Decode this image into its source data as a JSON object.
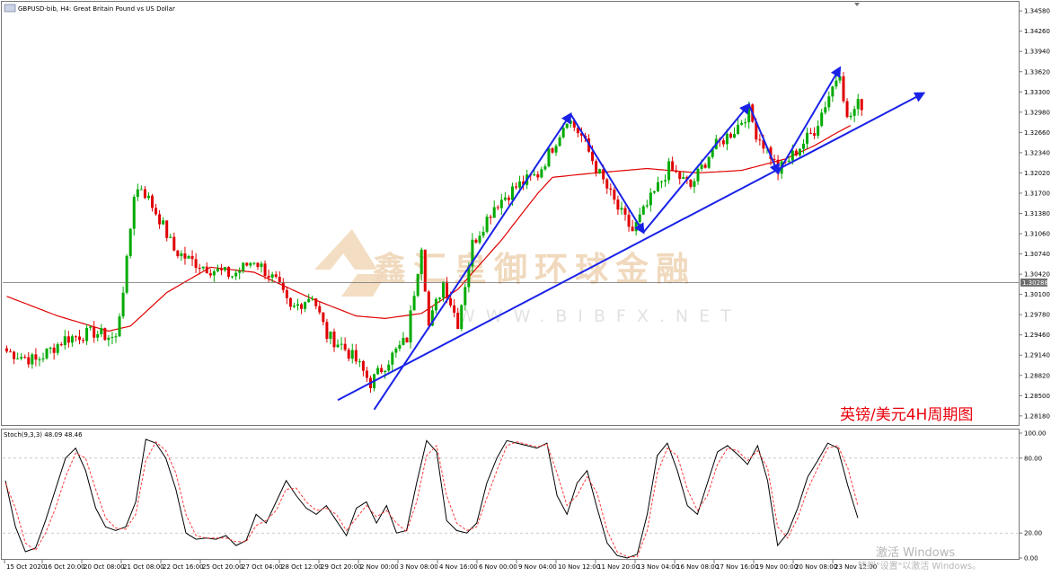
{
  "window": {
    "title": "GBPUSD-bib, H4:  Great Britain Pound vs US Dollar"
  },
  "annotation": {
    "caption": "英镑/美元4H周期图"
  },
  "watermark": {
    "text": "鑫汇皇御环球金融",
    "url": "WWW.BIBFX.NET"
  },
  "os_overlay": {
    "line1": "激活 Windows",
    "line2": "转到\"设置\"以激活 Windows。"
  },
  "colors": {
    "bull": "#00aa00",
    "bear": "#e00000",
    "ma": "#e00000",
    "trend": "#1a22e8",
    "stoch_main": "#000000",
    "stoch_signal": "#ff3b3b",
    "price_line": "#6d6d6d"
  },
  "chart_data": [
    {
      "type": "candlestick",
      "title": "GBPUSD-bib, H4:  Great Britain Pound vs US Dollar",
      "current_price": "1.30288",
      "ylim": [
        1.2805,
        1.347
      ],
      "y_ticks": [
        "1.34580",
        "1.34260",
        "1.33940",
        "1.33620",
        "1.33300",
        "1.32980",
        "1.32660",
        "1.32340",
        "1.32020",
        "1.31700",
        "1.31380",
        "1.31060",
        "1.30740",
        "1.30420",
        "1.30100",
        "1.29780",
        "1.29460",
        "1.29140",
        "1.28820",
        "1.28500",
        "1.28180"
      ],
      "x_ticks": [
        "15 Oct 2020",
        "16 Oct 20:00",
        "20 Oct 08:00",
        "21 Oct 08:00",
        "22 Oct 16:00",
        "25 Oct 20:00",
        "27 Oct 04:00",
        "28 Oct 12:00",
        "29 Oct 20:00",
        "2 Nov 00:00",
        "3 Nov 08:00",
        "4 Nov 16:00",
        "6 Nov 00:00",
        "9 Nov 04:00",
        "10 Nov 12:00",
        "11 Nov 20:00",
        "13 Nov 04:00",
        "16 Nov 08:00",
        "17 Nov 16:00",
        "19 Nov 00:00",
        "20 Nov 08:00",
        "23 Nov 12:00"
      ],
      "series": [
        {
          "name": "MA",
          "anchors": [
            [
              0,
              1.3007
            ],
            [
              14,
              1.2976
            ],
            [
              28,
              1.2952
            ],
            [
              34,
              1.296
            ],
            [
              44,
              1.3013
            ],
            [
              56,
              1.3053
            ],
            [
              68,
              1.3045
            ],
            [
              84,
              1.3003
            ],
            [
              96,
              1.2976
            ],
            [
              104,
              1.2972
            ],
            [
              114,
              1.298
            ],
            [
              124,
              1.3018
            ],
            [
              136,
              1.3096
            ],
            [
              146,
              1.317
            ],
            [
              150,
              1.3195
            ],
            [
              160,
              1.3201
            ],
            [
              176,
              1.3209
            ],
            [
              190,
              1.3202
            ],
            [
              202,
              1.3206
            ],
            [
              214,
              1.3224
            ],
            [
              222,
              1.3245
            ],
            [
              228,
              1.3265
            ],
            [
              232,
              1.3277
            ]
          ]
        },
        {
          "name": "Price",
          "anchors": [
            [
              0,
              1.292
            ],
            [
              8,
              1.2905
            ],
            [
              16,
              1.294
            ],
            [
              24,
              1.295
            ],
            [
              30,
              1.294
            ],
            [
              33,
              1.306
            ],
            [
              35,
              1.317
            ],
            [
              37,
              1.318
            ],
            [
              42,
              1.313
            ],
            [
              46,
              1.308
            ],
            [
              50,
              1.3065
            ],
            [
              56,
              1.305
            ],
            [
              62,
              1.304
            ],
            [
              68,
              1.3065
            ],
            [
              74,
              1.303
            ],
            [
              78,
              1.2985
            ],
            [
              84,
              1.301
            ],
            [
              88,
              1.2945
            ],
            [
              92,
              1.293
            ],
            [
              96,
              1.2905
            ],
            [
              100,
              1.287
            ],
            [
              104,
              1.29
            ],
            [
              110,
              1.294
            ],
            [
              114,
              1.309
            ],
            [
              116,
              1.296
            ],
            [
              120,
              1.303
            ],
            [
              124,
              1.2965
            ],
            [
              128,
              1.309
            ],
            [
              134,
              1.315
            ],
            [
              140,
              1.318
            ],
            [
              146,
              1.32
            ],
            [
              152,
              1.3265
            ],
            [
              154,
              1.329
            ],
            [
              158,
              1.326
            ],
            [
              162,
              1.321
            ],
            [
              168,
              1.3145
            ],
            [
              172,
              1.311
            ],
            [
              176,
              1.315
            ],
            [
              182,
              1.321
            ],
            [
              188,
              1.318
            ],
            [
              194,
              1.324
            ],
            [
              200,
              1.327
            ],
            [
              204,
              1.33
            ],
            [
              206,
              1.3265
            ],
            [
              210,
              1.323
            ],
            [
              212,
              1.3205
            ],
            [
              216,
              1.323
            ],
            [
              222,
              1.327
            ],
            [
              226,
              1.3325
            ],
            [
              229,
              1.3365
            ],
            [
              231,
              1.3285
            ],
            [
              234,
              1.331
            ]
          ]
        }
      ],
      "trend_arrows": [
        {
          "points": [
            [
              "2 Nov 04:00",
              1.2828
            ],
            [
              "10 Nov 12:00",
              1.3295
            ]
          ],
          "head": true
        },
        {
          "points": [
            [
              "10 Nov 12:00",
              1.3295
            ],
            [
              "13 Nov 04:00",
              1.3108
            ]
          ],
          "head": true
        },
        {
          "points": [
            [
              "13 Nov 04:00",
              1.3108
            ],
            [
              "17 Nov 20:00",
              1.331
            ]
          ],
          "head": true
        },
        {
          "points": [
            [
              "17 Nov 20:00",
              1.331
            ],
            [
              "19 Nov 04:00",
              1.3202
            ]
          ],
          "head": true
        },
        {
          "points": [
            [
              "19 Nov 04:00",
              1.3202
            ],
            [
              "23 Nov 00:00",
              1.3368
            ]
          ],
          "head": true
        },
        {
          "points": [
            [
              "29 Oct 20:00",
              1.2843
            ],
            [
              "26 Nov",
              1.3328
            ]
          ],
          "head": true
        }
      ]
    },
    {
      "type": "line",
      "title": "Stoch(9,3,3) 48.09 48.46",
      "ylim": [
        0,
        100
      ],
      "y_ticks": [
        "100.00",
        "80.00",
        "20.00",
        "0.00"
      ],
      "levels": [
        80,
        20
      ],
      "series": [
        {
          "name": "main",
          "values": [
            62,
            25,
            5,
            8,
            30,
            55,
            80,
            88,
            70,
            40,
            25,
            22,
            25,
            45,
            95,
            92,
            80,
            55,
            20,
            15,
            16,
            15,
            18,
            10,
            14,
            35,
            28,
            45,
            62,
            50,
            40,
            35,
            42,
            30,
            18,
            40,
            45,
            28,
            42,
            20,
            22,
            60,
            94,
            85,
            30,
            22,
            20,
            28,
            60,
            80,
            94,
            92,
            90,
            88,
            92,
            50,
            35,
            60,
            70,
            40,
            12,
            2,
            0,
            3,
            35,
            82,
            92,
            70,
            42,
            35,
            60,
            85,
            90,
            83,
            75,
            90,
            62,
            10,
            20,
            40,
            65,
            78,
            92,
            88,
            58,
            32
          ]
        },
        {
          "name": "signal",
          "values": [
            60,
            40,
            12,
            6,
            20,
            40,
            65,
            84,
            80,
            55,
            32,
            24,
            23,
            35,
            78,
            93,
            86,
            68,
            35,
            18,
            16,
            16,
            16,
            13,
            13,
            26,
            30,
            38,
            55,
            56,
            45,
            38,
            40,
            35,
            22,
            32,
            42,
            33,
            38,
            28,
            21,
            45,
            82,
            90,
            50,
            28,
            22,
            25,
            48,
            70,
            90,
            93,
            91,
            89,
            91,
            68,
            42,
            50,
            65,
            52,
            22,
            5,
            1,
            1,
            22,
            68,
            88,
            82,
            55,
            38,
            50,
            75,
            88,
            86,
            78,
            86,
            72,
            25,
            16,
            32,
            55,
            72,
            88,
            90,
            72,
            42
          ]
        }
      ]
    }
  ]
}
